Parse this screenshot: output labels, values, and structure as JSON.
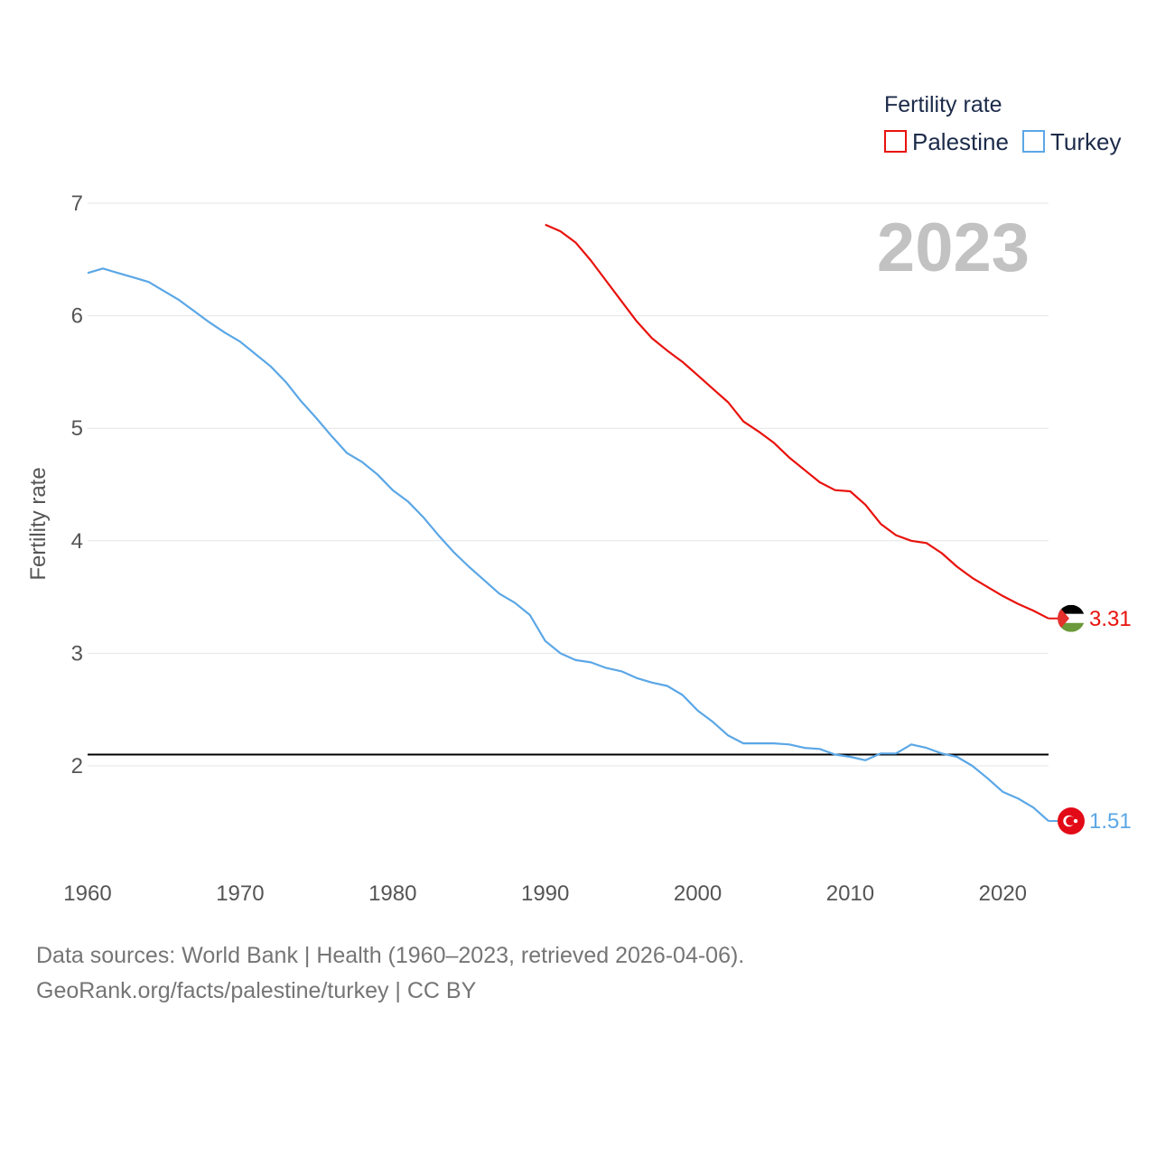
{
  "chart_data": {
    "type": "line",
    "title": "",
    "year_label": "2023",
    "xlabel": "",
    "ylabel": "Fertility rate",
    "xlim": [
      1960,
      2023
    ],
    "ylim": [
      1.3,
      7
    ],
    "x_ticks": [
      1960,
      1970,
      1980,
      1990,
      2000,
      2010,
      2020
    ],
    "y_ticks": [
      2,
      3,
      4,
      5,
      6,
      7
    ],
    "grid": true,
    "legend": {
      "title": "Fertility rate",
      "placement": "top-right"
    },
    "reference_line": {
      "value": 2.1,
      "color": "#000000"
    },
    "series": [
      {
        "name": "Palestine",
        "color": "#e8120c",
        "flag_icon": "palestine-flag-icon",
        "end_label": "3.31",
        "x": [
          1990,
          1991,
          1992,
          1993,
          1994,
          1995,
          1996,
          1997,
          1998,
          1999,
          2000,
          2001,
          2002,
          2003,
          2004,
          2005,
          2006,
          2007,
          2008,
          2009,
          2010,
          2011,
          2012,
          2013,
          2014,
          2015,
          2016,
          2017,
          2018,
          2019,
          2020,
          2021,
          2022,
          2023
        ],
        "values": [
          6.81,
          6.75,
          6.65,
          6.49,
          6.31,
          6.13,
          5.95,
          5.8,
          5.69,
          5.59,
          5.47,
          5.35,
          5.23,
          5.06,
          4.97,
          4.87,
          4.74,
          4.63,
          4.52,
          4.45,
          4.44,
          4.32,
          4.15,
          4.05,
          4.0,
          3.98,
          3.89,
          3.77,
          3.67,
          3.59,
          3.51,
          3.44,
          3.38,
          3.31
        ]
      },
      {
        "name": "Turkey",
        "color": "#5ba7e6",
        "flag_icon": "turkey-flag-icon",
        "end_label": "1.51",
        "x": [
          1960,
          1961,
          1962,
          1963,
          1964,
          1965,
          1966,
          1967,
          1968,
          1969,
          1970,
          1971,
          1972,
          1973,
          1974,
          1975,
          1976,
          1977,
          1978,
          1979,
          1980,
          1981,
          1982,
          1983,
          1984,
          1985,
          1986,
          1987,
          1988,
          1989,
          1990,
          1991,
          1992,
          1993,
          1994,
          1995,
          1996,
          1997,
          1998,
          1999,
          2000,
          2001,
          2002,
          2003,
          2004,
          2005,
          2006,
          2007,
          2008,
          2009,
          2010,
          2011,
          2012,
          2013,
          2014,
          2015,
          2016,
          2017,
          2018,
          2019,
          2020,
          2021,
          2022,
          2023
        ],
        "values": [
          6.38,
          6.42,
          6.38,
          6.34,
          6.3,
          6.22,
          6.14,
          6.04,
          5.94,
          5.85,
          5.77,
          5.66,
          5.55,
          5.41,
          5.24,
          5.09,
          4.93,
          4.78,
          4.7,
          4.59,
          4.45,
          4.35,
          4.21,
          4.05,
          3.9,
          3.77,
          3.65,
          3.53,
          3.45,
          3.34,
          3.11,
          3.0,
          2.94,
          2.92,
          2.87,
          2.84,
          2.78,
          2.74,
          2.71,
          2.63,
          2.49,
          2.39,
          2.27,
          2.2,
          2.2,
          2.2,
          2.19,
          2.16,
          2.15,
          2.1,
          2.08,
          2.05,
          2.11,
          2.11,
          2.19,
          2.16,
          2.11,
          2.08,
          2.0,
          1.89,
          1.77,
          1.71,
          1.63,
          1.51
        ]
      }
    ]
  },
  "footer": {
    "sources": "Data sources: World Bank | Health (1960–2023, retrieved 2026-04-06).",
    "attribution": "GeoRank.org/facts/palestine/turkey | CC BY"
  }
}
